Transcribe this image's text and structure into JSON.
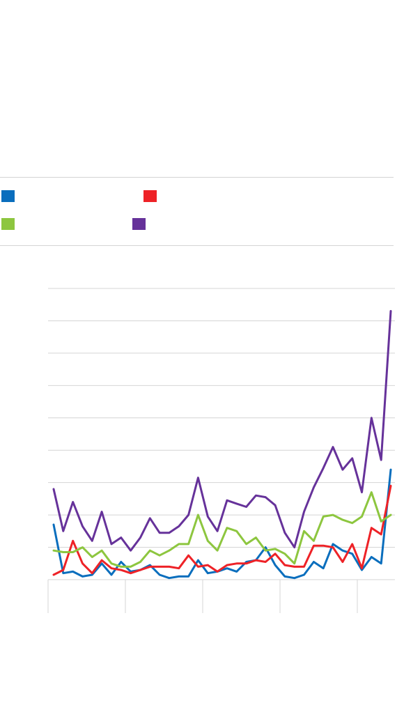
{
  "chart_data": {
    "type": "line",
    "title": "",
    "xlabel": "",
    "ylabel": "",
    "ylim": [
      0,
      90
    ],
    "grid": true,
    "legend_placement": "top",
    "series": [
      {
        "color": "#0a6ebd",
        "values": [
          17,
          2,
          2.5,
          1,
          1.5,
          5,
          1.5,
          5.5,
          2.5,
          3,
          4.5,
          1.5,
          0.5,
          1,
          1,
          6,
          2,
          2.5,
          3.5,
          2.5,
          5.5,
          6,
          10,
          4.5,
          1,
          0.5,
          1.5,
          5.5,
          3.5,
          11,
          9,
          8,
          3,
          7,
          5,
          34
        ]
      },
      {
        "color": "#ee2227",
        "values": [
          1.5,
          3,
          12,
          5,
          2,
          6,
          3.5,
          3,
          2,
          3,
          4,
          4,
          4,
          3.5,
          7.5,
          4,
          4.5,
          2.5,
          4.5,
          5,
          5,
          6,
          5.5,
          8,
          4.5,
          4,
          4,
          10.5,
          10.5,
          10,
          5.5,
          11,
          3.5,
          16,
          14,
          29
        ]
      },
      {
        "color": "#8dc63f",
        "values": [
          9,
          8.5,
          8.5,
          10,
          7,
          9,
          5,
          4,
          4,
          5.5,
          9,
          7.5,
          9,
          11,
          11,
          20,
          12,
          9,
          16,
          15,
          11,
          13,
          9,
          9.5,
          8,
          5,
          15,
          12,
          19.5,
          20,
          18.5,
          17.5,
          19.5,
          27,
          18,
          20
        ]
      },
      {
        "color": "#66329a",
        "values": [
          28,
          15,
          24,
          16.5,
          12,
          21,
          11,
          13,
          9,
          13,
          19,
          14.5,
          14.5,
          16.5,
          20,
          31.5,
          19.5,
          15,
          24.5,
          23.5,
          22.5,
          26,
          25.5,
          23,
          14.5,
          10,
          21,
          28.5,
          34.5,
          41,
          34,
          37.5,
          27,
          50,
          37,
          83
        ]
      }
    ]
  }
}
